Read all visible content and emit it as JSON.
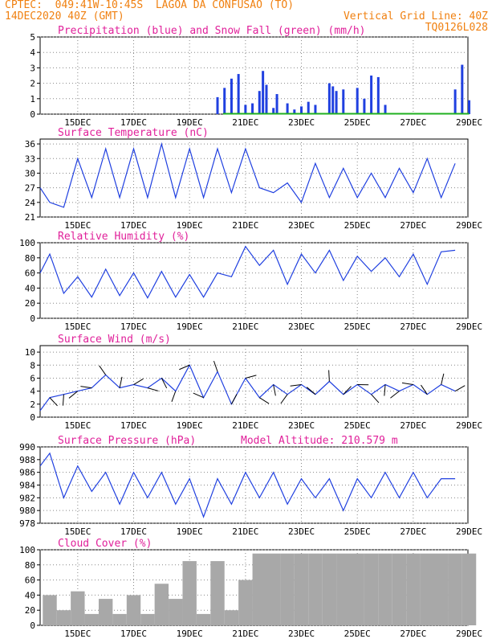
{
  "header": {
    "line1": "CPTEC:  049:41W-10:45S  LAGOA DA CONFUSAO (TO)",
    "line2_left": "14DEC2020 40Z (GMT)",
    "line2_right": "Vertical Grid Line: 40Z",
    "line3_right": "TQ0126L028"
  },
  "colors": {
    "header": "#f08010",
    "title": "#e0209a",
    "blue": "#2040e0",
    "green": "#20b020",
    "cloud": "#a8a8a8",
    "grid": "#888888"
  },
  "x_axis": {
    "labels": [
      "15DEC",
      "17DEC",
      "19DEC",
      "21DEC",
      "23DEC",
      "25DEC",
      "27DEC",
      "29DEC"
    ]
  },
  "chart_data": [
    {
      "type": "bar",
      "title": "Precipitation (blue) and Snow Fall (green) (mm/h)",
      "ylim": [
        0,
        5
      ],
      "yticks": [
        0,
        1,
        2,
        3,
        4,
        5
      ],
      "x": [
        "20DEC00",
        "20DEC06",
        "20DEC12",
        "20DEC18",
        "21DEC00",
        "21DEC06",
        "21DEC12",
        "21DEC15",
        "21DEC18",
        "22DEC00",
        "22DEC03",
        "22DEC12",
        "22DEC18",
        "23DEC00",
        "23DEC06",
        "23DEC12",
        "24DEC00",
        "24DEC03",
        "24DEC06",
        "24DEC12",
        "25DEC00",
        "25DEC06",
        "25DEC12",
        "25DEC18",
        "26DEC00",
        "28DEC12",
        "28DEC18",
        "29DEC00"
      ],
      "series": [
        {
          "values": [
            1.1,
            1.7,
            2.3,
            2.6,
            0.6,
            0.7,
            1.5,
            2.8,
            1.9,
            0.4,
            1.3,
            0.7,
            0.3,
            0.5,
            0.8,
            0.6,
            2.0,
            1.8,
            1.5,
            1.6,
            1.7,
            1.0,
            2.5,
            2.4,
            0.6,
            1.6,
            3.2,
            0.9
          ]
        },
        {
          "values": [
            0,
            0,
            0,
            0,
            0,
            0,
            0,
            0,
            0,
            0,
            0,
            0,
            0,
            0,
            0,
            0,
            0,
            0,
            0,
            0,
            0,
            0,
            0,
            0,
            0,
            0,
            0,
            0
          ]
        }
      ],
      "grid": true
    },
    {
      "type": "line",
      "title": "Surface Temperature (nC)",
      "ylim": [
        21,
        37
      ],
      "yticks": [
        21,
        24,
        27,
        30,
        33,
        36
      ],
      "x_days": [
        0,
        0.5,
        1,
        1.5,
        2,
        2.5,
        3,
        3.5,
        4,
        4.5,
        5,
        5.5,
        6,
        6.5,
        7,
        7.5,
        8,
        8.5,
        9,
        9.5,
        10,
        10.5,
        11,
        11.5,
        12,
        12.5,
        13,
        13.5,
        14,
        14.5,
        15
      ],
      "series": [
        {
          "values": [
            27,
            24,
            23,
            33,
            25,
            35,
            25,
            35,
            25,
            36,
            25,
            35,
            25,
            35,
            26,
            35,
            27,
            26,
            28,
            24,
            32,
            25,
            31,
            25,
            30,
            25,
            31,
            26,
            33,
            25,
            32
          ]
        }
      ],
      "grid": true
    },
    {
      "type": "line",
      "title": "Relative Humidity (%)",
      "ylim": [
        0,
        100
      ],
      "yticks": [
        0,
        20,
        40,
        60,
        80,
        100
      ],
      "x_days": [
        0,
        0.5,
        1,
        1.5,
        2,
        2.5,
        3,
        3.5,
        4,
        4.5,
        5,
        5.5,
        6,
        6.5,
        7,
        7.5,
        8,
        8.5,
        9,
        9.5,
        10,
        10.5,
        11,
        11.5,
        12,
        12.5,
        13,
        13.5,
        14,
        14.5,
        15
      ],
      "series": [
        {
          "values": [
            60,
            85,
            33,
            55,
            28,
            65,
            30,
            60,
            27,
            62,
            28,
            58,
            28,
            60,
            55,
            95,
            70,
            90,
            45,
            85,
            60,
            90,
            50,
            82,
            62,
            80,
            55,
            85,
            45,
            88,
            90
          ]
        }
      ],
      "grid": true
    },
    {
      "type": "line",
      "title": "Surface Wind (m/s)",
      "ylim": [
        0,
        11
      ],
      "yticks": [
        0,
        2,
        4,
        6,
        8,
        10
      ],
      "x_days": [
        0,
        0.5,
        1,
        1.5,
        2,
        2.5,
        3,
        3.5,
        4,
        4.5,
        5,
        5.5,
        6,
        6.5,
        7,
        7.5,
        8,
        8.5,
        9,
        9.5,
        10,
        10.5,
        11,
        11.5,
        12,
        12.5,
        13,
        13.5,
        14,
        14.5,
        15
      ],
      "series": [
        {
          "values": [
            1,
            3,
            3.5,
            4,
            4.5,
            6.5,
            4.5,
            5,
            4.5,
            6,
            4,
            8,
            3,
            7,
            2,
            6,
            3,
            5,
            3.5,
            5,
            3.5,
            5.5,
            3.5,
            5,
            3.5,
            5,
            4,
            5,
            3.5,
            5,
            4
          ]
        }
      ],
      "grid": true
    },
    {
      "type": "line",
      "title": "Surface Pressure (hPa)",
      "annotation": "Model Altitude: 210.579 m",
      "ylim": [
        978,
        990
      ],
      "yticks": [
        978,
        980,
        982,
        984,
        986,
        988,
        990
      ],
      "x_days": [
        0,
        0.5,
        1,
        1.5,
        2,
        2.5,
        3,
        3.5,
        4,
        4.5,
        5,
        5.5,
        6,
        6.5,
        7,
        7.5,
        8,
        8.5,
        9,
        9.5,
        10,
        10.5,
        11,
        11.5,
        12,
        12.5,
        13,
        13.5,
        14,
        14.5,
        15
      ],
      "series": [
        {
          "values": [
            987,
            989,
            982,
            987,
            983,
            986,
            981,
            986,
            982,
            986,
            981,
            985,
            979,
            985,
            981,
            986,
            982,
            986,
            981,
            985,
            982,
            985,
            980,
            985,
            982,
            986,
            982,
            986,
            982,
            985,
            985
          ]
        }
      ],
      "grid": true
    },
    {
      "type": "bar",
      "title": "Cloud Cover (%)",
      "ylim": [
        0,
        100
      ],
      "yticks": [
        0,
        20,
        40,
        60,
        80,
        100
      ],
      "x_days": [
        0,
        0.5,
        1,
        1.5,
        2,
        2.5,
        3,
        3.5,
        4,
        4.5,
        5,
        5.5,
        6,
        6.5,
        7,
        7.5,
        8,
        8.5,
        9,
        9.5,
        10,
        10.5,
        11,
        11.5,
        12,
        12.5,
        13,
        13.5,
        14,
        14.5,
        15
      ],
      "series": [
        {
          "values": [
            40,
            20,
            45,
            15,
            35,
            15,
            40,
            15,
            55,
            35,
            85,
            15,
            85,
            20,
            60,
            95,
            95,
            95,
            95,
            95,
            95,
            95,
            95,
            95,
            95,
            95,
            95,
            95,
            95,
            95,
            95
          ]
        }
      ],
      "grid": true
    }
  ]
}
